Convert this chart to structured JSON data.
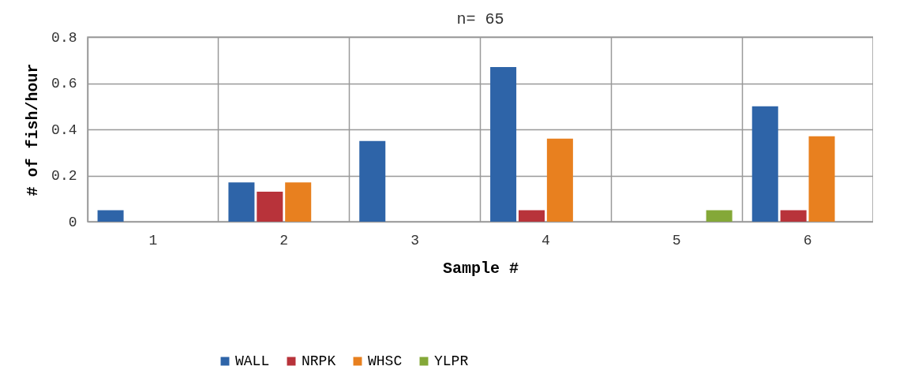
{
  "chart_data": {
    "type": "bar",
    "title": "n= 65",
    "xlabel": "Sample #",
    "ylabel": "# of fish/hour",
    "categories": [
      "1",
      "2",
      "3",
      "4",
      "5",
      "6"
    ],
    "series": [
      {
        "name": "WALL",
        "color": "#2e64a8",
        "values": [
          0.05,
          0.17,
          0.35,
          0.67,
          0,
          0.5
        ]
      },
      {
        "name": "NRPK",
        "color": "#b8333a",
        "values": [
          0,
          0.13,
          0,
          0.05,
          0,
          0.05
        ]
      },
      {
        "name": "WHSC",
        "color": "#e8801f",
        "values": [
          0,
          0.17,
          0,
          0.36,
          0,
          0.37
        ]
      },
      {
        "name": "YLPR",
        "color": "#84a838",
        "values": [
          0,
          0,
          0,
          0,
          0.05,
          0
        ]
      }
    ],
    "ylim": [
      0,
      0.8
    ],
    "yticks": [
      0,
      0.2,
      0.4,
      0.6,
      0.8
    ],
    "grid": true,
    "legend": "bottom"
  }
}
